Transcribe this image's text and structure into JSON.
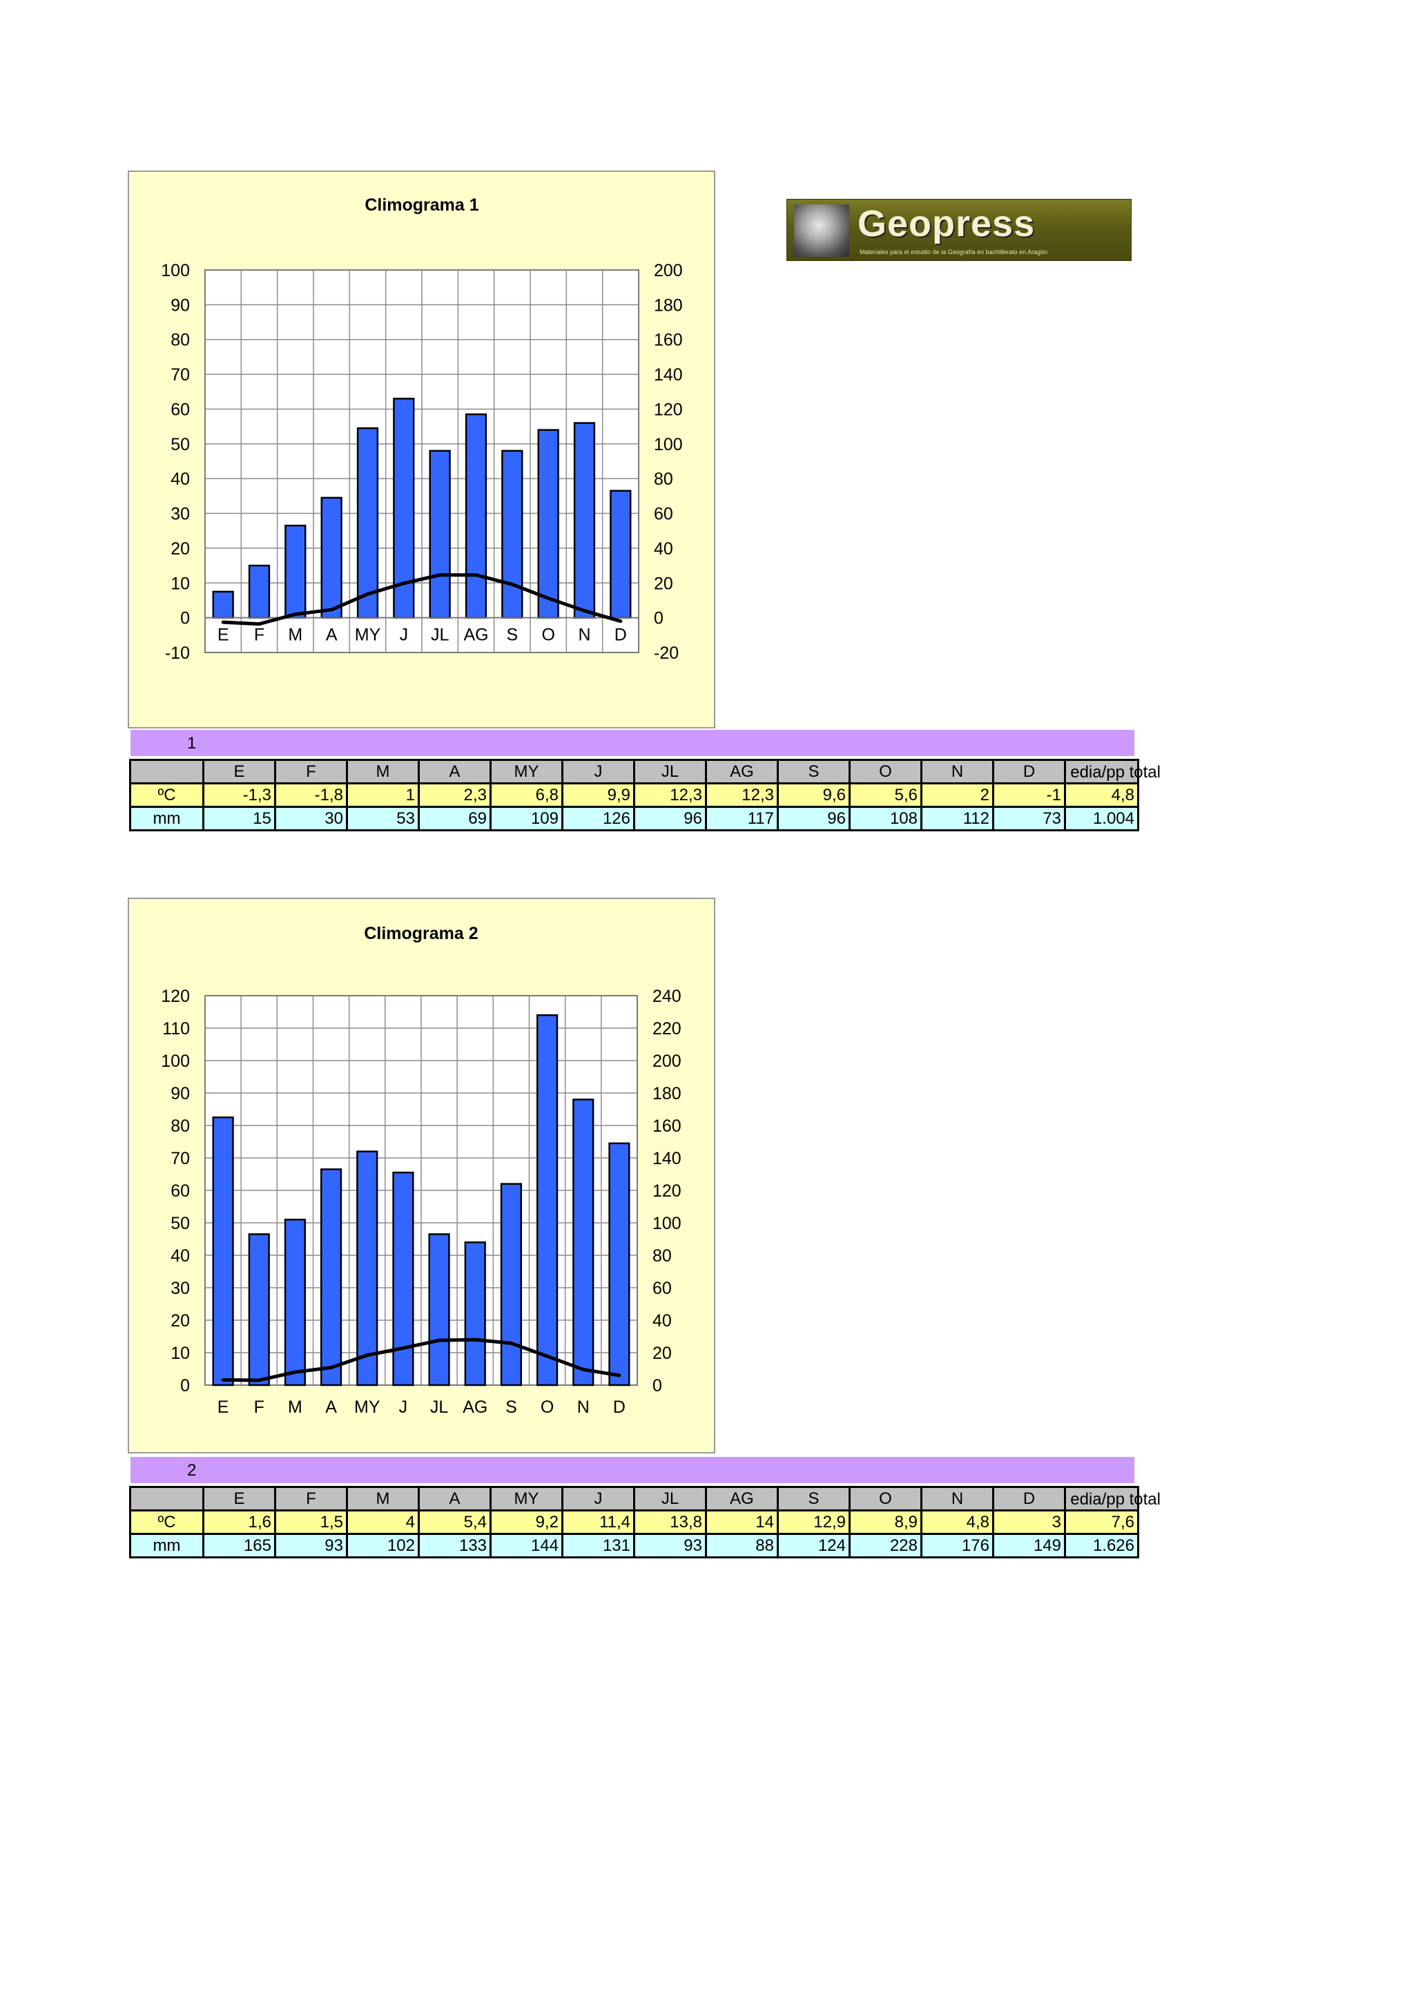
{
  "logo": {
    "name": "Geopress",
    "subtitle": "Materiales para el estudio de la Geografía en bachillerato en Aragón"
  },
  "chart_data": [
    {
      "type": "bar",
      "title": "Climograma 1",
      "categories": [
        "E",
        "F",
        "M",
        "A",
        "MY",
        "J",
        "JL",
        "AG",
        "S",
        "O",
        "N",
        "D"
      ],
      "series": [
        {
          "kind": "bar",
          "axis": "right",
          "values": [
            15,
            30,
            53,
            69,
            109,
            126,
            96,
            117,
            96,
            108,
            112,
            73
          ],
          "color": "#3366ff"
        },
        {
          "kind": "line",
          "axis": "left",
          "values": [
            -1.3,
            -1.8,
            1,
            2.3,
            6.8,
            9.9,
            12.3,
            12.3,
            9.6,
            5.6,
            2,
            -1
          ],
          "color": "#000000"
        }
      ],
      "left_axis": {
        "min": -10,
        "max": 100,
        "step": 10,
        "ticks": [
          "100",
          "90",
          "80",
          "70",
          "60",
          "50",
          "40",
          "30",
          "20",
          "10",
          "0",
          "-10"
        ]
      },
      "right_axis": {
        "min": -20,
        "max": 200,
        "step": 20,
        "ticks": [
          "200",
          "180",
          "160",
          "140",
          "120",
          "100",
          "80",
          "60",
          "40",
          "20",
          "0",
          "-20"
        ]
      },
      "grid": true,
      "legend": "none"
    },
    {
      "type": "bar",
      "title": "Climograma 2",
      "categories": [
        "E",
        "F",
        "M",
        "A",
        "MY",
        "J",
        "JL",
        "AG",
        "S",
        "O",
        "N",
        "D"
      ],
      "series": [
        {
          "kind": "bar",
          "axis": "right",
          "values": [
            165,
            93,
            102,
            133,
            144,
            131,
            93,
            88,
            124,
            228,
            176,
            149
          ],
          "color": "#3366ff"
        },
        {
          "kind": "line",
          "axis": "left",
          "values": [
            1.6,
            1.5,
            4,
            5.4,
            9.2,
            11.4,
            13.8,
            14,
            12.9,
            8.9,
            4.8,
            3
          ],
          "color": "#000000"
        }
      ],
      "left_axis": {
        "min": 0,
        "max": 120,
        "step": 10,
        "ticks": [
          "120",
          "110",
          "100",
          "90",
          "80",
          "70",
          "60",
          "50",
          "40",
          "30",
          "20",
          "10",
          "0"
        ]
      },
      "right_axis": {
        "min": 0,
        "max": 240,
        "step": 20,
        "ticks": [
          "240",
          "220",
          "200",
          "180",
          "160",
          "140",
          "120",
          "100",
          "80",
          "60",
          "40",
          "20",
          "0"
        ]
      },
      "grid": true,
      "legend": "none"
    }
  ],
  "tables": [
    {
      "band_label": "1",
      "header": [
        "",
        "E",
        "F",
        "M",
        "A",
        "MY",
        "J",
        "JL",
        "AG",
        "S",
        "O",
        "N",
        "D",
        "media/pp total"
      ],
      "header_visible_last": "edia/pp total",
      "temp_row": [
        "ºC",
        "-1,3",
        "-1,8",
        "1",
        "2,3",
        "6,8",
        "9,9",
        "12,3",
        "12,3",
        "9,6",
        "5,6",
        "2",
        "-1",
        "4,8"
      ],
      "prec_row": [
        "mm",
        "15",
        "30",
        "53",
        "69",
        "109",
        "126",
        "96",
        "117",
        "96",
        "108",
        "112",
        "73",
        "1.004"
      ]
    },
    {
      "band_label": "2",
      "header": [
        "",
        "E",
        "F",
        "M",
        "A",
        "MY",
        "J",
        "JL",
        "AG",
        "S",
        "O",
        "N",
        "D",
        "media/pp total"
      ],
      "header_visible_last": "edia/pp total",
      "temp_row": [
        "ºC",
        "1,6",
        "1,5",
        "4",
        "5,4",
        "9,2",
        "11,4",
        "13,8",
        "14",
        "12,9",
        "8,9",
        "4,8",
        "3",
        "7,6"
      ],
      "prec_row": [
        "mm",
        "165",
        "93",
        "102",
        "133",
        "144",
        "131",
        "93",
        "88",
        "124",
        "228",
        "176",
        "149",
        "1.626"
      ]
    }
  ]
}
